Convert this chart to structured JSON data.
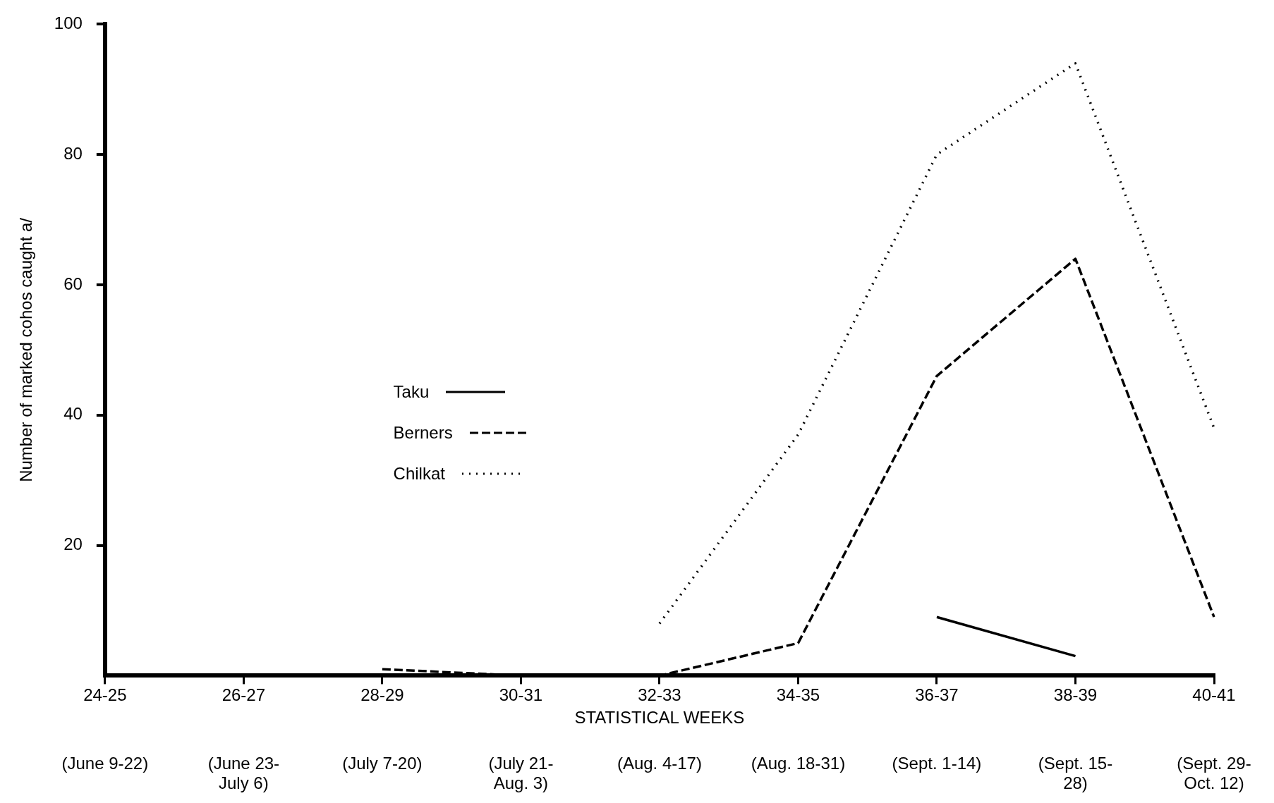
{
  "chart_data": {
    "type": "line",
    "xlabel": "STATISTICAL WEEKS",
    "ylabel": "Number of marked cohos caught a/",
    "categories": [
      "24-25",
      "26-27",
      "28-29",
      "30-31",
      "32-33",
      "34-35",
      "36-37",
      "38-39",
      "40-41"
    ],
    "ylim": [
      0,
      100
    ],
    "yticks": [
      20,
      40,
      60,
      80,
      100
    ],
    "grid": false,
    "legend": "center",
    "marker": "none",
    "series": [
      {
        "name": "Taku",
        "color": "#000000",
        "line_style": "solid",
        "values": [
          null,
          null,
          null,
          null,
          null,
          null,
          9,
          3,
          null
        ]
      },
      {
        "name": "Berners",
        "color": "#000000",
        "line_style": "dashed",
        "values": [
          null,
          null,
          1,
          0,
          0,
          5,
          46,
          64,
          9
        ]
      },
      {
        "name": "Chilkat",
        "color": "#000000",
        "line_style": "dotted",
        "values": [
          null,
          null,
          null,
          null,
          8,
          37,
          80,
          94,
          38
        ]
      }
    ],
    "annotations": [
      "(June 9-22)",
      "(June 23-\nJuly 6)",
      "(July 7-20)",
      "(July 21-\nAug. 3)",
      "(Aug. 4-17)",
      "(Aug. 18-31)",
      "(Sept. 1-14)",
      "(Sept. 15-\n28)",
      "(Sept. 29-\nOct. 12)"
    ]
  }
}
